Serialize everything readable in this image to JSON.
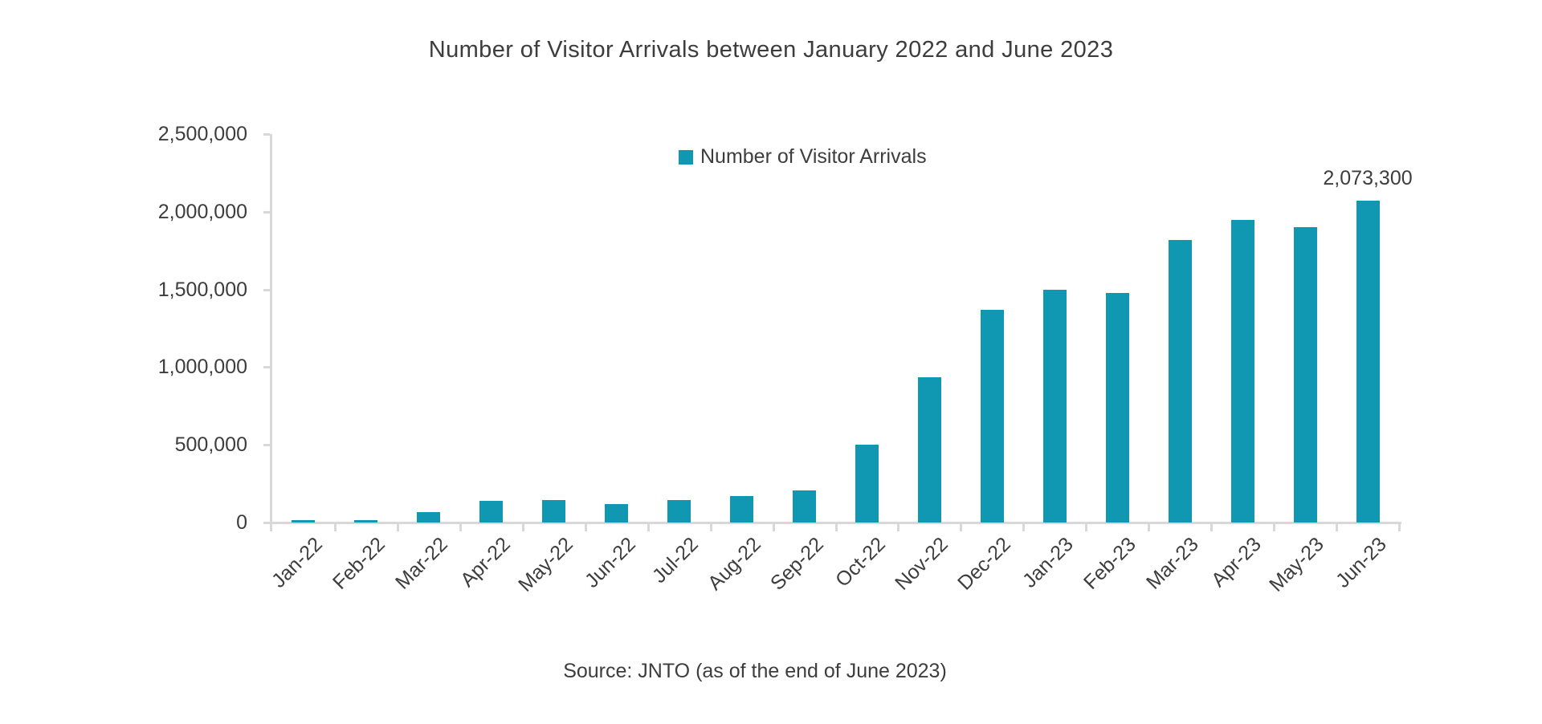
{
  "source": "Source: JNTO (as of the end of June 2023)",
  "colors": {
    "bar": "#1097b2",
    "axis": "#d8d8d8",
    "text": "#3d3d3d"
  },
  "chart_data": {
    "type": "bar",
    "title": "Number of Visitor Arrivals between January 2022 and June 2023",
    "legend": "Number of Visitor Arrivals",
    "legend_position": "top-center",
    "grid": false,
    "xlabel": "",
    "ylabel": "",
    "categories": [
      "Jan-22",
      "Feb-22",
      "Mar-22",
      "Apr-22",
      "May-22",
      "Jun-22",
      "Jul-22",
      "Aug-22",
      "Sep-22",
      "Oct-22",
      "Nov-22",
      "Dec-22",
      "Jan-23",
      "Feb-23",
      "Mar-23",
      "Apr-23",
      "May-23",
      "Jun-23"
    ],
    "values": [
      17800,
      16700,
      66100,
      139500,
      147000,
      120400,
      144600,
      169900,
      206600,
      498600,
      934600,
      1370100,
      1497300,
      1475300,
      1817500,
      1949100,
      1898900,
      2073300
    ],
    "ylim": [
      0,
      2500000
    ],
    "ytick_interval": 500000,
    "ytick_labels": [
      "0",
      "500,000",
      "1,000,000",
      "1,500,000",
      "2,000,000",
      "2,500,000"
    ],
    "data_label": {
      "category": "Jun-23",
      "text": "2,073,300",
      "value": 2073300
    }
  }
}
